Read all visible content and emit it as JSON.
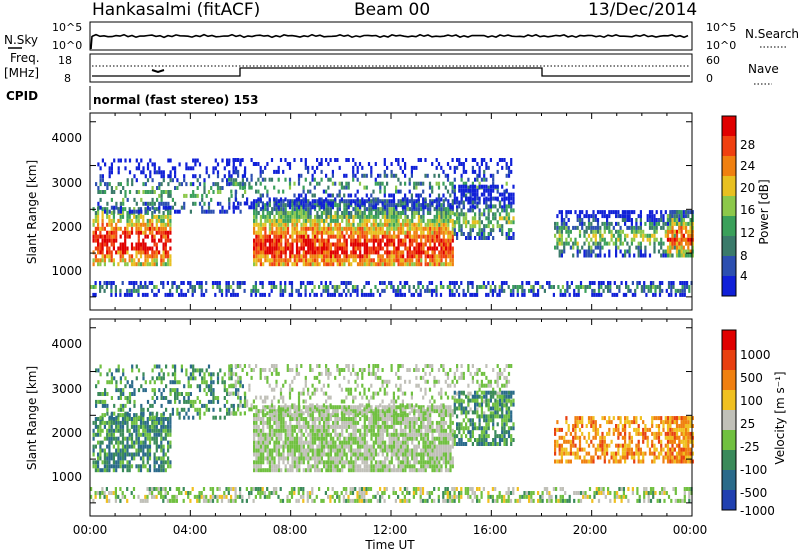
{
  "header": {
    "station": "Hankasalmi (fitACF)",
    "beam": "Beam 00",
    "date": "13/Dec/2014"
  },
  "noise_panel": {
    "left_label": "N.Sky",
    "right_label": "N.Search",
    "left_ticks": [
      "10^5",
      "10^0"
    ],
    "right_ticks": [
      "10^5",
      "10^0"
    ]
  },
  "freq_panel": {
    "left_label_1": "Freq.",
    "left_label_2": "[MHz]",
    "right_label": "Nave",
    "left_ticks": [
      "18",
      "8"
    ],
    "right_ticks": [
      "60",
      "0"
    ]
  },
  "cpid": {
    "label": "CPID",
    "text": "normal (fast stereo) 153"
  },
  "chart_data": [
    {
      "type": "heatmap",
      "name": "power",
      "ylabel": "Slant Range [km]",
      "yticks": [
        "1000",
        "2000",
        "3000",
        "4000"
      ],
      "colorbar_label": "Power [dB]",
      "colorbar_ticks": [
        "4",
        "8",
        "12",
        "16",
        "20",
        "24",
        "28"
      ],
      "colors": [
        "#1020d8",
        "#2c4fb0",
        "#3a7a6a",
        "#3aa05a",
        "#8cc84a",
        "#e8c020",
        "#f08010",
        "#f04010",
        "#e00000"
      ]
    },
    {
      "type": "heatmap",
      "name": "velocity",
      "ylabel": "Slant Range [km]",
      "yticks": [
        "1000",
        "2000",
        "3000",
        "4000"
      ],
      "colorbar_label": "Velocity [m s⁻¹]",
      "colorbar_ticks": [
        "1000",
        "500",
        "100",
        "25",
        "-25",
        "-100",
        "-500",
        "-1000"
      ],
      "colors": [
        "#2040b0",
        "#2a6a8a",
        "#3a8a5a",
        "#70c040",
        "#c0c0b8",
        "#f0c020",
        "#f08010",
        "#e84010",
        "#e00000"
      ]
    }
  ],
  "xaxis": {
    "ticks": [
      "00:00",
      "04:00",
      "08:00",
      "12:00",
      "16:00",
      "20:00",
      "00:00"
    ],
    "label": "Time UT"
  }
}
